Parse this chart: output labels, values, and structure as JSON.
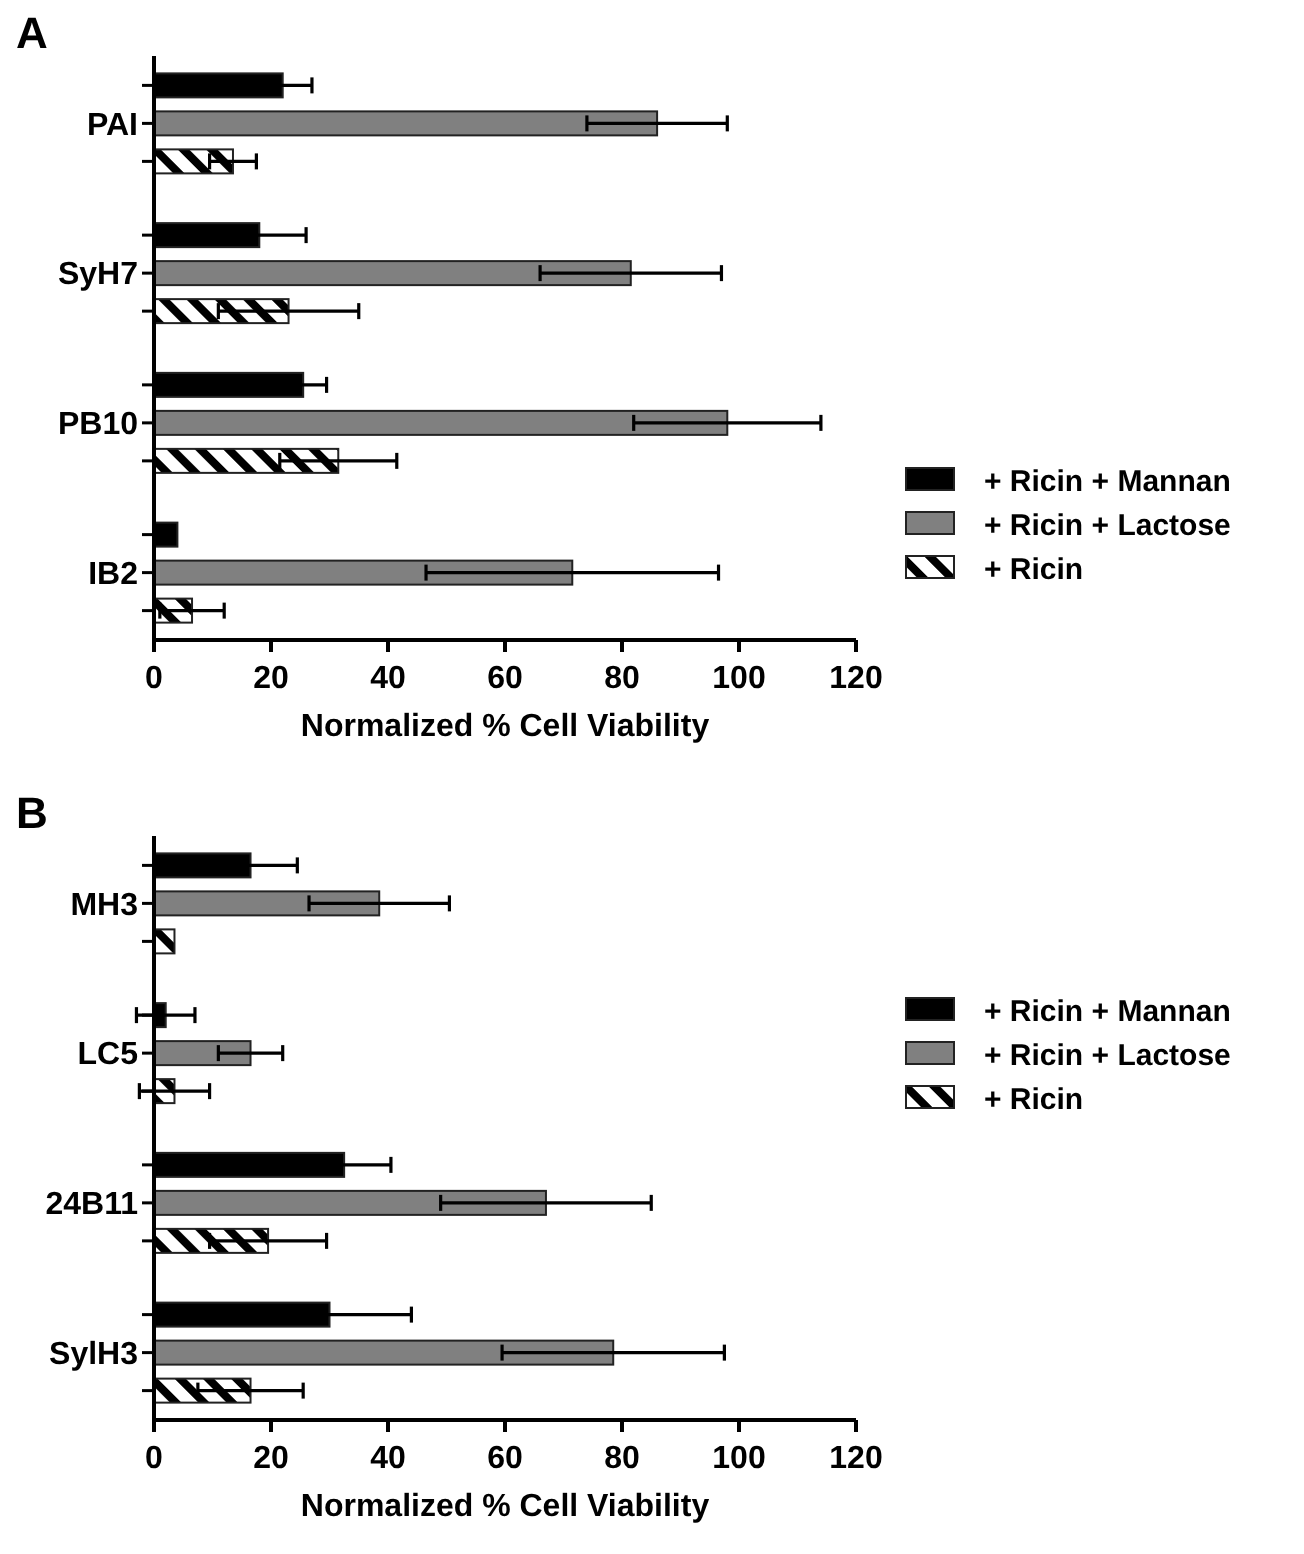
{
  "chart_data": [
    {
      "type": "bar",
      "orientation": "horizontal",
      "title": "A",
      "xlabel": "Normalized % Cell Viability",
      "categories": [
        "PAI",
        "SyH7",
        "PB10",
        "IB2"
      ],
      "xlim": [
        0,
        120
      ],
      "xticks": [
        0,
        20,
        40,
        60,
        80,
        100,
        120
      ],
      "legend": "right",
      "series": [
        {
          "name": "+ Ricin + Mannan",
          "color": "#000000",
          "values": [
            22,
            18,
            25.5,
            4
          ],
          "errors": [
            5,
            8,
            4,
            null
          ]
        },
        {
          "name": "+ Ricin + Lactose",
          "color": "#808080",
          "values": [
            86,
            81.5,
            98,
            71.5
          ],
          "errors": [
            12,
            15.5,
            16,
            25
          ]
        },
        {
          "name": "+ Ricin",
          "color": "#ffffff",
          "values": [
            13.5,
            23,
            31.5,
            6.5
          ],
          "errors": [
            4,
            12,
            10,
            5.5
          ]
        }
      ]
    },
    {
      "type": "bar",
      "orientation": "horizontal",
      "title": "B",
      "xlabel": "Normalized % Cell Viability",
      "categories": [
        "MH3",
        "LC5",
        "24B11",
        "SylH3"
      ],
      "xlim": [
        0,
        120
      ],
      "xticks": [
        0,
        20,
        40,
        60,
        80,
        100,
        120
      ],
      "legend": "right",
      "series": [
        {
          "name": "+ Ricin + Mannan",
          "color": "#000000",
          "values": [
            16.5,
            2,
            32.5,
            30
          ],
          "errors": [
            8,
            5,
            8,
            14
          ]
        },
        {
          "name": "+ Ricin + Lactose",
          "color": "#808080",
          "values": [
            38.5,
            16.5,
            67,
            78.5
          ],
          "errors": [
            12,
            5.5,
            18,
            19
          ]
        },
        {
          "name": "+ Ricin",
          "color": "#ffffff",
          "values": [
            3.5,
            3.5,
            19.5,
            16.5
          ],
          "errors": [
            null,
            6,
            10,
            9
          ]
        }
      ]
    }
  ]
}
